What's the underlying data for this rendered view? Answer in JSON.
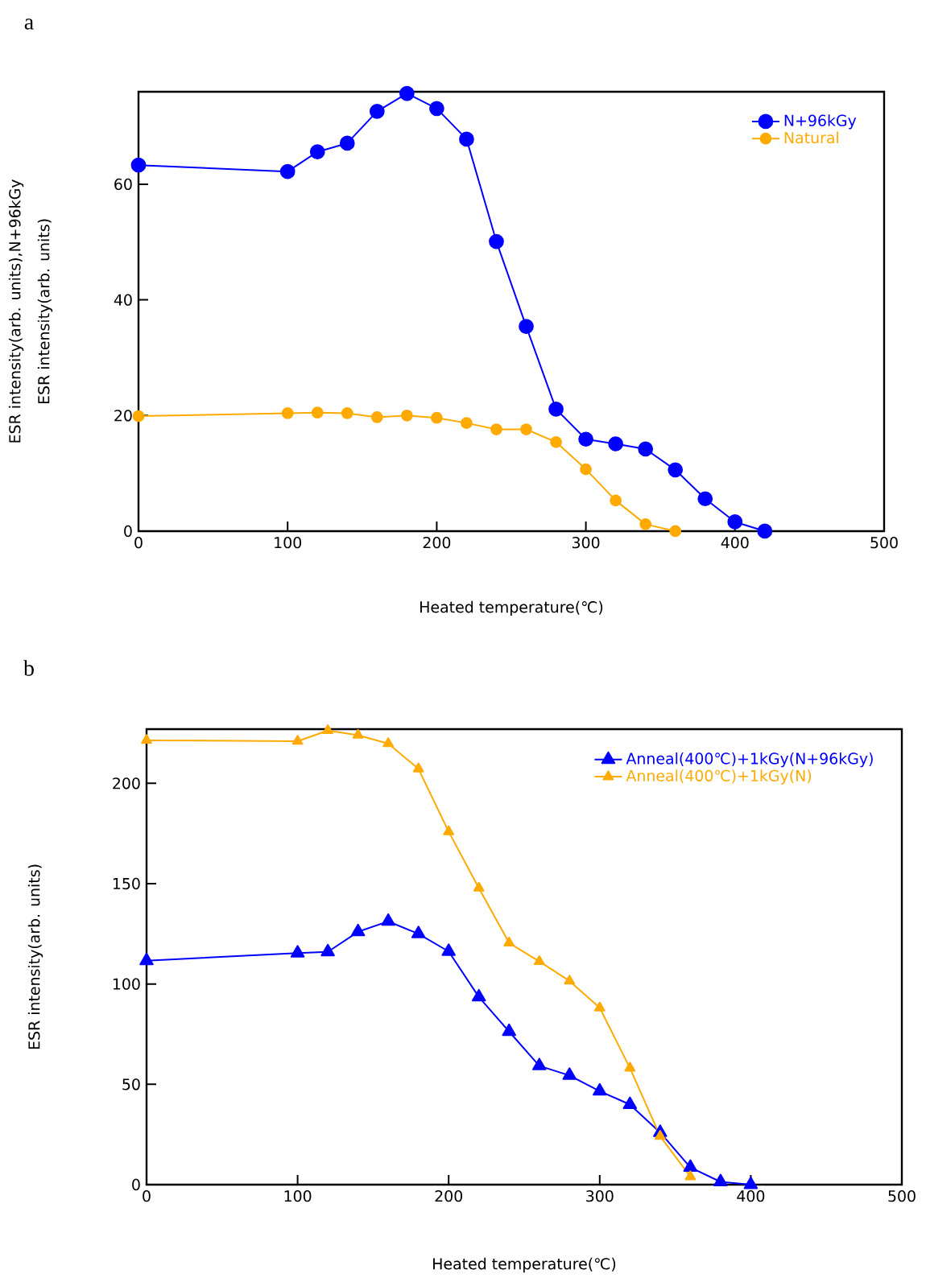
{
  "chart_data": [
    {
      "type": "line",
      "title": "a",
      "xlabel": "Heated temperature(℃)",
      "ylabel": "ESR intensity(arb. units)",
      "annotations": [
        "ESR intensity(arb. units),N+96kGy"
      ],
      "xlim": [
        0,
        500
      ],
      "ylim": [
        0,
        76
      ],
      "xticks": [
        0,
        100,
        200,
        300,
        400,
        500
      ],
      "yticks": [
        0,
        20,
        40,
        60
      ],
      "legend": "top right",
      "marker": "circle",
      "x": [
        0,
        100,
        120,
        140,
        160,
        180,
        200,
        220,
        240,
        260,
        280,
        300,
        320,
        340,
        360,
        380,
        400,
        420
      ],
      "series": [
        {
          "name": "N+96kGy",
          "color": "#0000ff",
          "values": [
            63.3,
            62.2,
            65.6,
            67.1,
            72.6,
            75.7,
            73.1,
            67.8,
            50.1,
            35.4,
            21.1,
            15.9,
            15.1,
            14.2,
            10.6,
            5.6,
            1.6,
            0
          ]
        },
        {
          "name": "Natural",
          "color": "#ffaa00",
          "values": [
            19.9,
            20.4,
            20.5,
            20.4,
            19.7,
            20.0,
            19.6,
            18.7,
            17.6,
            17.6,
            15.4,
            10.7,
            5.3,
            1.2,
            0,
            null,
            null,
            null
          ]
        }
      ]
    },
    {
      "type": "line",
      "title": "b",
      "xlabel": "Heated temperature(℃)",
      "ylabel": "ESR intensity(arb. units)",
      "xlim": [
        0,
        500
      ],
      "ylim": [
        0,
        227
      ],
      "xticks": [
        0,
        100,
        200,
        300,
        400,
        500
      ],
      "yticks": [
        0,
        50,
        100,
        150,
        200
      ],
      "legend": "top right",
      "marker": "triangle",
      "x": [
        0,
        100,
        120,
        140,
        160,
        180,
        200,
        220,
        240,
        260,
        280,
        300,
        320,
        340,
        360,
        380,
        400
      ],
      "series": [
        {
          "name": "Anneal(400℃)+1kGy(N+96kGy)",
          "color": "#0000ff",
          "values": [
            111.6,
            115.4,
            116,
            126,
            131.2,
            125,
            116.2,
            93.5,
            76.3,
            59.2,
            54.4,
            46.6,
            39.9,
            26,
            8.6,
            1.4,
            0
          ]
        },
        {
          "name": "Anneal(400℃)+1kGy(N)",
          "color": "#ffaa00",
          "values": [
            221.4,
            221,
            226.3,
            224,
            219.8,
            207.2,
            175.9,
            147.8,
            120.5,
            111.2,
            101.5,
            88.1,
            58.1,
            24.1,
            4,
            null,
            null
          ]
        }
      ]
    }
  ]
}
